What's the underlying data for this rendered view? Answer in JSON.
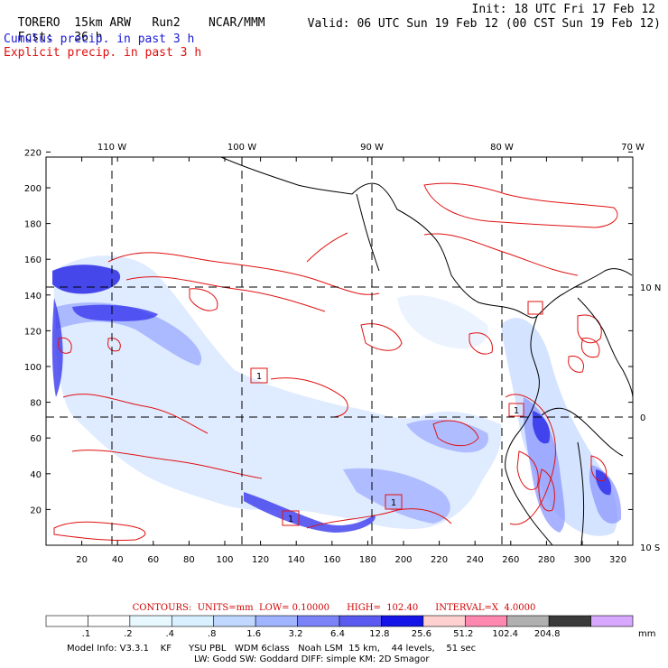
{
  "header": {
    "model": "TORERO",
    "resolution": "15km ARW",
    "run": "Run2",
    "org": "NCAR/MMM",
    "init": "Init: 18 UTC Fri 17 Feb 12",
    "fcst_label": "Fcst:",
    "fcst_value": "36 h",
    "valid": "Valid: 06 UTC Sun 19 Feb 12 (00 CST Sun 19 Feb 12)",
    "field1": "Cumulus precip. in past 3 h",
    "field2": "Explicit precip. in past 3 h",
    "color_field1": "#1a1ad6",
    "color_field2": "#e01010"
  },
  "axes": {
    "top_lon_labels": [
      "110 W",
      "100 W",
      "90 W",
      "80 W",
      "70 W"
    ],
    "right_lat_labels": [
      "10 N",
      "0",
      "10 S"
    ],
    "left_y_ticks": [
      220,
      200,
      180,
      160,
      140,
      120,
      100,
      80,
      60,
      40,
      20
    ],
    "bottom_x_ticks": [
      20,
      40,
      60,
      80,
      100,
      120,
      140,
      160,
      180,
      200,
      220,
      240,
      260,
      280,
      300,
      320
    ]
  },
  "box_labels": [
    "1",
    "1",
    "1",
    "1"
  ],
  "contours_line": "CONTOURS:  UNITS=mm  LOW= 0.10000      HIGH=  102.40      INTERVAL=X  4.0000",
  "colorbar": {
    "labels": [
      ".1",
      ".2",
      ".4",
      ".8",
      "1.6",
      "3.2",
      "6.4",
      "12.8",
      "25.6",
      "51.2",
      "102.4",
      "204.8"
    ],
    "unit": "mm",
    "colors": [
      "#ffffff",
      "#ffffff",
      "#e8f8ff",
      "#d8f0ff",
      "#c0d8ff",
      "#a0b4ff",
      "#7a84f8",
      "#5a5af0",
      "#1414e8",
      "#ffd0d0",
      "#ff88b0",
      "#b0b0b0",
      "#3a3a3a",
      "#d8a8ff"
    ]
  },
  "model_info": {
    "line1": "Model Info: V3.3.1    KF      YSU PBL   WDM 6class   Noah LSM  15 km,    44 levels,    51 sec",
    "line2": "LW: Godd SW: Goddard DIFF: simple KM: 2D Smagor"
  }
}
